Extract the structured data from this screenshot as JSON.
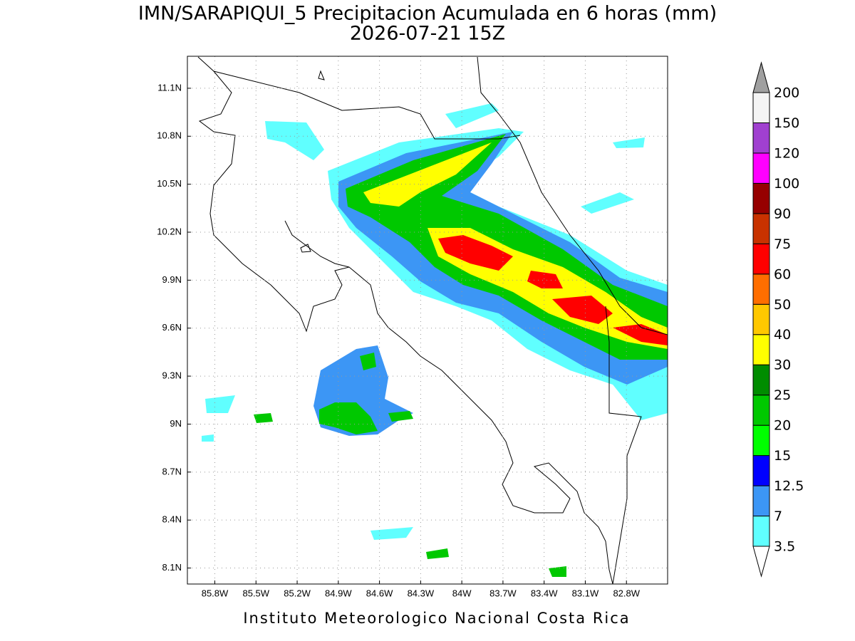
{
  "header": {
    "title": "IMN/SARAPIQUI_5 Precipitacion Acumulada en 6 horas (mm)",
    "subtitle": "2026-07-21 15Z"
  },
  "map": {
    "xlim": [
      -86.0,
      -82.5
    ],
    "ylim": [
      8.0,
      11.3
    ],
    "grid": true,
    "xticks": [
      {
        "value": -85.8,
        "label": "85.8W"
      },
      {
        "value": -85.5,
        "label": "85.5W"
      },
      {
        "value": -85.2,
        "label": "85.2W"
      },
      {
        "value": -84.9,
        "label": "84.9W"
      },
      {
        "value": -84.6,
        "label": "84.6W"
      },
      {
        "value": -84.3,
        "label": "84.3W"
      },
      {
        "value": -84.0,
        "label": "84W"
      },
      {
        "value": -83.7,
        "label": "83.7W"
      },
      {
        "value": -83.4,
        "label": "83.4W"
      },
      {
        "value": -83.1,
        "label": "83.1W"
      },
      {
        "value": -82.8,
        "label": "82.8W"
      }
    ],
    "yticks": [
      {
        "value": 8.1,
        "label": "8.1N"
      },
      {
        "value": 8.4,
        "label": "8.4N"
      },
      {
        "value": 8.7,
        "label": "8.7N"
      },
      {
        "value": 9.0,
        "label": "9N"
      },
      {
        "value": 9.3,
        "label": "9.3N"
      },
      {
        "value": 9.6,
        "label": "9.6N"
      },
      {
        "value": 9.9,
        "label": "9.9N"
      },
      {
        "value": 10.2,
        "label": "10.2N"
      },
      {
        "value": 10.5,
        "label": "10.5N"
      },
      {
        "value": 10.8,
        "label": "10.8N"
      },
      {
        "value": 11.1,
        "label": "11.1N"
      }
    ]
  },
  "colorbar": {
    "levels": [
      3.5,
      7,
      12.5,
      15,
      20,
      25,
      30,
      40,
      50,
      60,
      75,
      90,
      100,
      120,
      150,
      200
    ],
    "colors": [
      "#60ffff",
      "#3c96f5",
      "#0000ff",
      "#00ff00",
      "#00c800",
      "#008c00",
      "#ffff00",
      "#ffc800",
      "#ff6e00",
      "#ff0000",
      "#c83200",
      "#960000",
      "#ff00ff",
      "#a040d0",
      "#f4f4f4"
    ],
    "under_color": "#ffffff",
    "over_color": "#a0a0a0"
  },
  "footer": "Instituto Meteorologico Nacional Costa Rica"
}
